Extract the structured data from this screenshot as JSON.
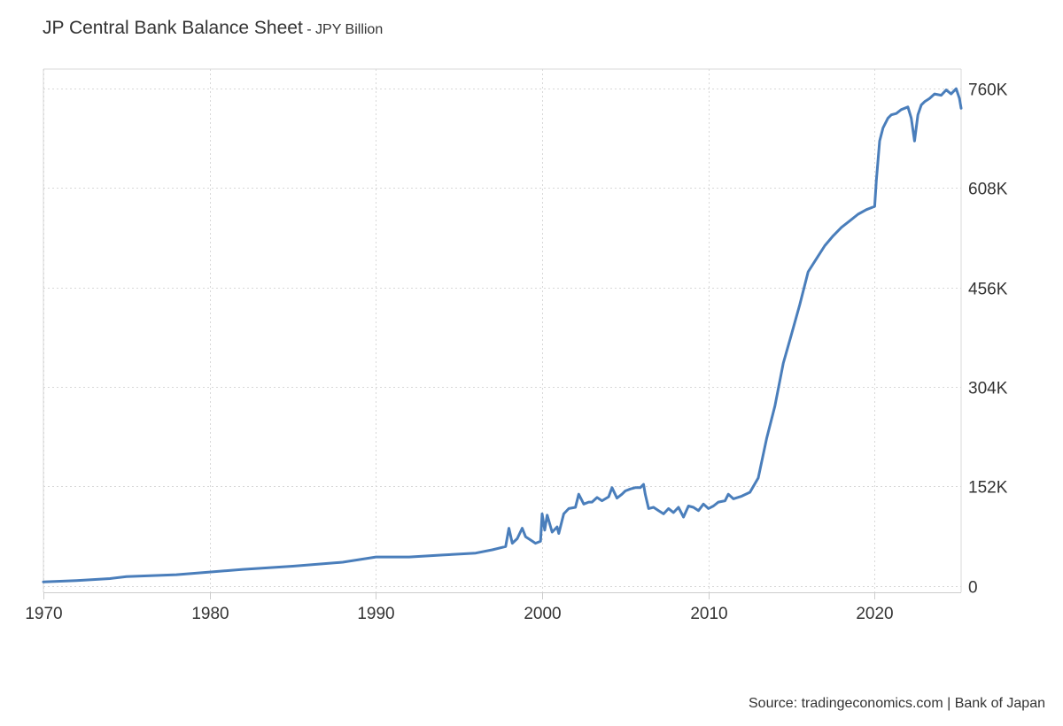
{
  "header": {
    "title": "JP Central Bank Balance Sheet",
    "separator": "-",
    "unit": "JPY Billion"
  },
  "footer": {
    "source": "Source: tradingeconomics.com | Bank of Japan"
  },
  "chart_data": {
    "type": "line",
    "title": "JP Central Bank Balance Sheet",
    "subtitle": "JPY Billion",
    "xlabel": "",
    "ylabel": "",
    "xlim": [
      1970,
      2025.2
    ],
    "ylim": [
      -10000,
      790000
    ],
    "x_ticks": [
      1970,
      1980,
      1990,
      2000,
      2010,
      2020
    ],
    "x_tick_labels": [
      "1970",
      "1980",
      "1990",
      "2000",
      "2010",
      "2020"
    ],
    "y_ticks": [
      0,
      152000,
      304000,
      456000,
      608000,
      760000
    ],
    "y_tick_labels": [
      "0",
      "152K",
      "304K",
      "456K",
      "608K",
      "760K"
    ],
    "y_axis_side": "right",
    "grid": true,
    "legend": "none",
    "colors": {
      "line": "#4a7ebb",
      "grid": "#d8d8d8",
      "axis": "#cccccc"
    },
    "series": [
      {
        "values_x": [
          1970,
          1972,
          1974,
          1975,
          1978,
          1980,
          1982,
          1985,
          1988,
          1990,
          1992,
          1994,
          1996,
          1997,
          1997.8,
          1998,
          1998.2,
          1998.5,
          1998.8,
          1999,
          1999.3,
          1999.6,
          1999.9,
          2000.0,
          2000.15,
          2000.3,
          2000.6,
          2000.9,
          2001.0,
          2001.3,
          2001.6,
          2002,
          2002.2,
          2002.5,
          2002.8,
          2003,
          2003.3,
          2003.6,
          2004.0,
          2004.2,
          2004.5,
          2004.8,
          2005,
          2005.3,
          2005.6,
          2005.9,
          2006.1,
          2006.2,
          2006.4,
          2006.7,
          2007,
          2007.3,
          2007.6,
          2007.9,
          2008.2,
          2008.5,
          2008.8,
          2009.1,
          2009.4,
          2009.7,
          2010,
          2010.3,
          2010.6,
          2011.0,
          2011.2,
          2011.5,
          2012,
          2012.5,
          2013,
          2013.5,
          2014,
          2014.5,
          2015,
          2015.5,
          2016,
          2016.5,
          2017,
          2017.5,
          2018,
          2018.5,
          2019,
          2019.5,
          2020.0,
          2020.1,
          2020.3,
          2020.5,
          2020.8,
          2021,
          2021.3,
          2021.6,
          2022,
          2022.2,
          2022.4,
          2022.5,
          2022.6,
          2022.8,
          2023,
          2023.3,
          2023.6,
          2024,
          2024.3,
          2024.6,
          2024.9,
          2025.1,
          2025.2
        ],
        "values_y": [
          6000,
          8000,
          11000,
          14000,
          17000,
          21000,
          25000,
          30000,
          36000,
          44000,
          44000,
          47000,
          50000,
          55000,
          60000,
          88000,
          65000,
          72000,
          88000,
          75000,
          70000,
          65000,
          68000,
          110000,
          85000,
          108000,
          82000,
          90000,
          80000,
          110000,
          118000,
          120000,
          140000,
          125000,
          128000,
          128000,
          135000,
          130000,
          136000,
          150000,
          134000,
          140000,
          145000,
          148000,
          150000,
          150000,
          155000,
          140000,
          118000,
          120000,
          115000,
          110000,
          118000,
          112000,
          120000,
          105000,
          122000,
          120000,
          115000,
          125000,
          118000,
          122000,
          128000,
          130000,
          140000,
          133000,
          137000,
          143000,
          165000,
          225000,
          275000,
          340000,
          385000,
          430000,
          480000,
          500000,
          520000,
          535000,
          548000,
          558000,
          568000,
          575000,
          580000,
          620000,
          680000,
          700000,
          715000,
          720000,
          722000,
          728000,
          732000,
          715000,
          680000,
          700000,
          720000,
          735000,
          740000,
          745000,
          752000,
          750000,
          758000,
          752000,
          760000,
          745000,
          730000
        ]
      }
    ]
  }
}
